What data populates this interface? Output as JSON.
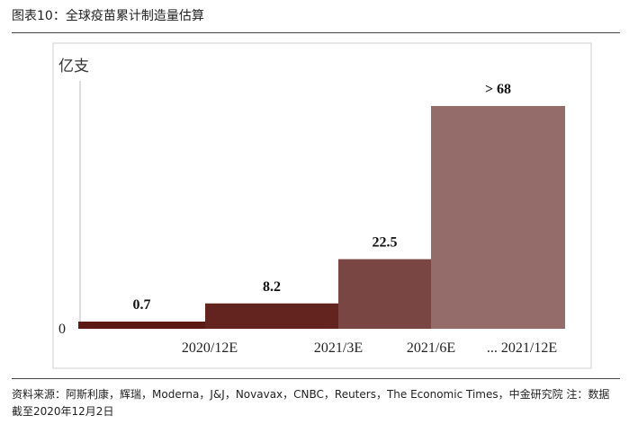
{
  "figure": {
    "title": "图表10：全球疫苗累计制造量估算",
    "source": "资料来源：阿斯利康，辉瑞，Moderna，J&J，Novavax，CNBC，Reuters，The Economic Times，中金研究院 注：数据截至2020年12月2日"
  },
  "chart_data": {
    "type": "bar",
    "ylabel": "亿支",
    "y_tick_labels": [
      "0"
    ],
    "categories": [
      "",
      "2020/12E",
      "2021/3E",
      "2021/6E … 2021/12E"
    ],
    "x_tick_labels": [
      "2020/12E",
      "2021/3E",
      "2021/6E",
      "... 2021/12E"
    ],
    "values": [
      0.7,
      8.2,
      22.5,
      68
    ],
    "data_labels": [
      "0.7",
      "8.2",
      "22.5",
      "> 68"
    ],
    "ylim": [
      0,
      72
    ],
    "grid": false,
    "colors": [
      "#5c1a14",
      "#632420",
      "#7a4643",
      "#946c69"
    ]
  }
}
